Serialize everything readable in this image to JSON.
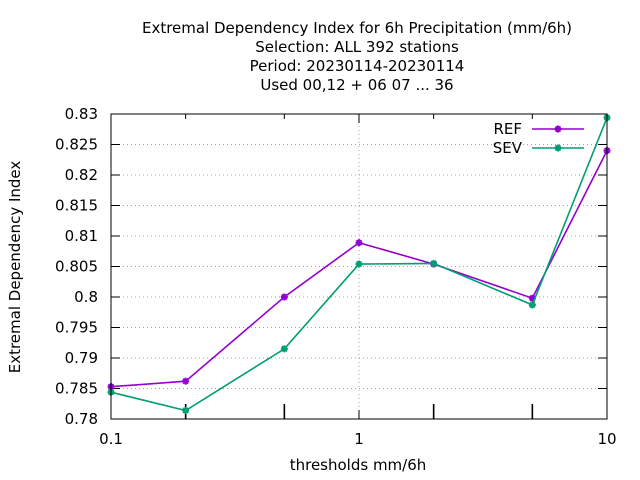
{
  "chart_data": {
    "type": "line",
    "title_lines": [
      "Extremal Dependency Index  for 6h Precipitation (mm/6h)",
      "Selection: ALL    392 stations",
      "Period: 20230114-20230114",
      "Used  00,12  + 06 07 ... 36"
    ],
    "xlabel": "thresholds mm/6h",
    "ylabel": "Extremal Dependency Index",
    "x_scale": "log",
    "xlim": [
      0.1,
      10
    ],
    "ylim": [
      0.78,
      0.83
    ],
    "x_ticks": [
      {
        "value": 0.1,
        "label": "0.1"
      },
      {
        "value": 1,
        "label": "1"
      },
      {
        "value": 10,
        "label": "10"
      }
    ],
    "x_minor_ticks": [
      0.2,
      0.5,
      2,
      5
    ],
    "y_ticks": [
      {
        "value": 0.78,
        "label": "0.78"
      },
      {
        "value": 0.785,
        "label": "0.785"
      },
      {
        "value": 0.79,
        "label": "0.79"
      },
      {
        "value": 0.795,
        "label": "0.795"
      },
      {
        "value": 0.8,
        "label": "0.8"
      },
      {
        "value": 0.805,
        "label": "0.805"
      },
      {
        "value": 0.81,
        "label": "0.81"
      },
      {
        "value": 0.815,
        "label": "0.815"
      },
      {
        "value": 0.82,
        "label": "0.82"
      },
      {
        "value": 0.825,
        "label": "0.825"
      },
      {
        "value": 0.83,
        "label": "0.83"
      }
    ],
    "grid": true,
    "legend_position": "top-right",
    "x": [
      0.1,
      0.2,
      0.5,
      1,
      2,
      5,
      10
    ],
    "series": [
      {
        "name": "REF",
        "color": "#9400d3",
        "values": [
          0.7853,
          0.7862,
          0.8,
          0.8089,
          0.8054,
          0.7998,
          0.824
        ]
      },
      {
        "name": "SEV",
        "color": "#009e73",
        "values": [
          0.7844,
          0.7814,
          0.7915,
          0.8054,
          0.8055,
          0.7987,
          0.8294
        ]
      }
    ]
  }
}
